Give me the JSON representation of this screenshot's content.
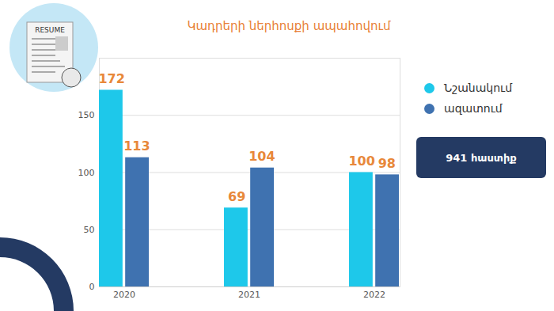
{
  "chart_data": {
    "type": "bar",
    "title": "Կադրերի ներհոսքի ապահովում",
    "categories": [
      "2020",
      "2021",
      "2022"
    ],
    "series": [
      {
        "name": "Նշանակում",
        "color": "#1ec8ea",
        "values": [
          172,
          69,
          100
        ]
      },
      {
        "name": "ազատում",
        "color": "#3f72b0",
        "values": [
          113,
          104,
          98
        ]
      }
    ],
    "ylim": [
      0,
      200
    ],
    "yticks": [
      0,
      50,
      100,
      150
    ],
    "grid": true,
    "data_labels": true,
    "legend": "right",
    "annotations": [
      "941 հաստիք",
      "RESUME"
    ]
  }
}
